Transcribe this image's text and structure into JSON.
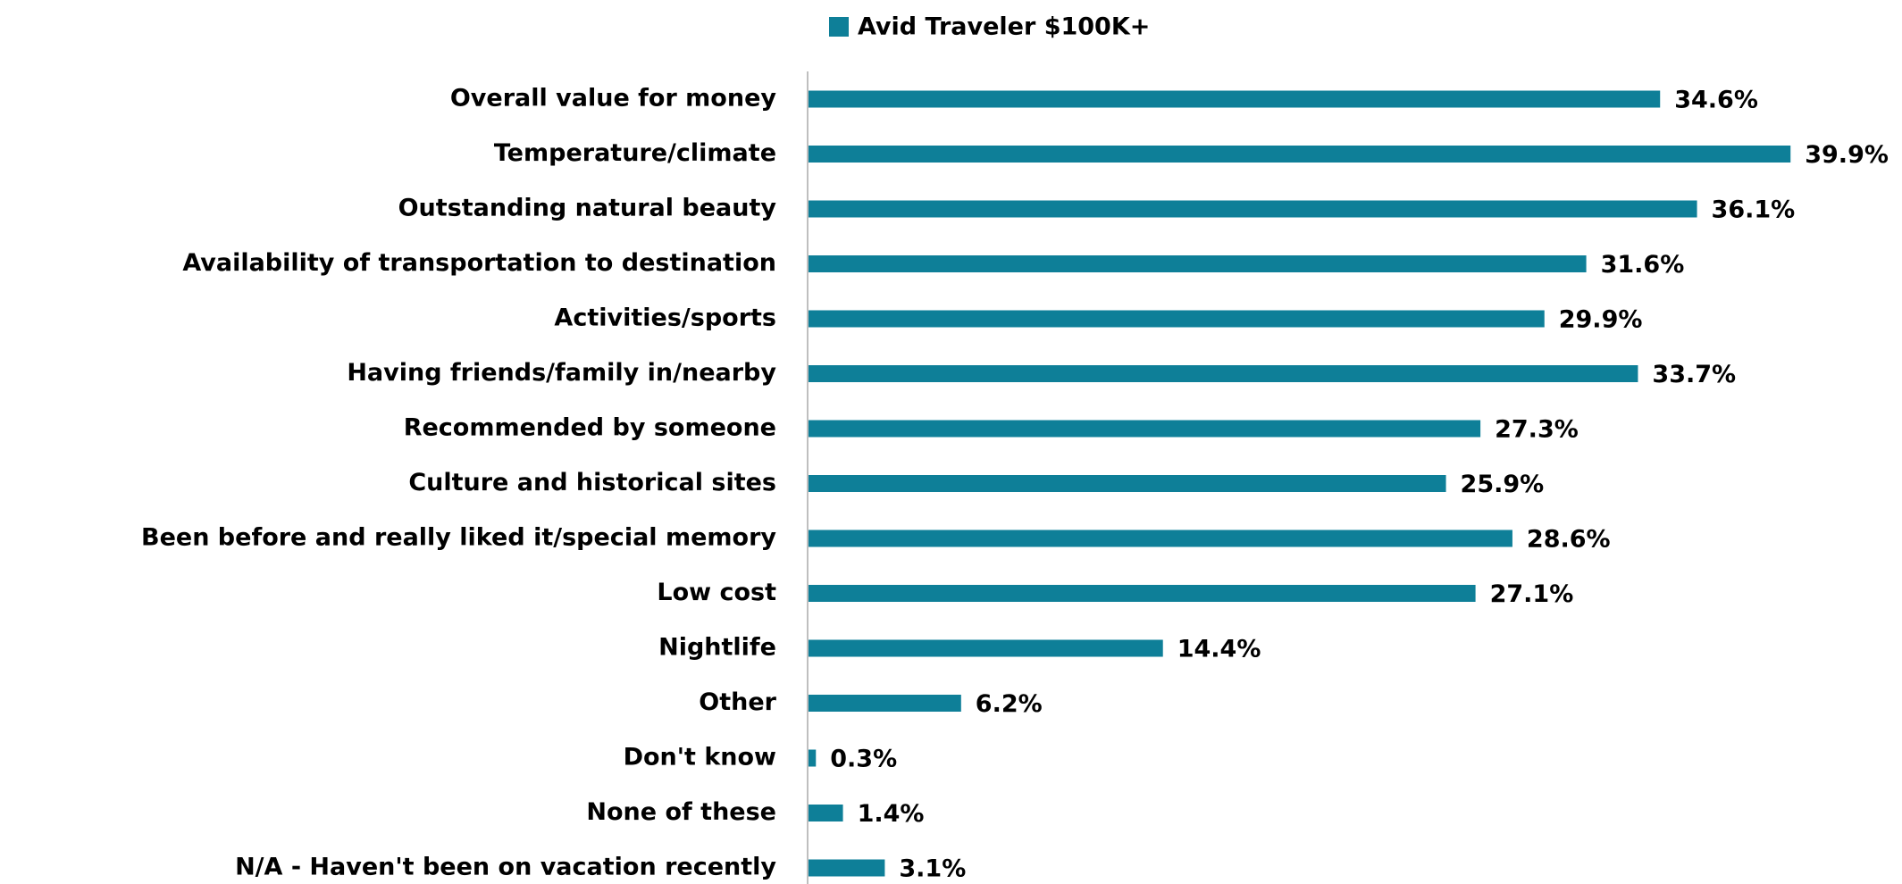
{
  "chart_data": {
    "type": "bar",
    "orientation": "horizontal",
    "categories": [
      "Overall value for money",
      "Temperature/climate",
      "Outstanding natural beauty",
      "Availability of transportation to destination",
      "Activities/sports",
      "Having friends/family in/nearby",
      "Recommended by someone",
      "Culture and historical sites",
      "Been before and really liked it/special memory",
      "Low cost",
      "Nightlife",
      "Other",
      "Don't know",
      "None of these",
      "N/A - Haven't been on vacation recently"
    ],
    "series": [
      {
        "name": "Avid Traveler $100K+",
        "color": "#0e7f98",
        "values": [
          34.6,
          39.9,
          36.1,
          31.6,
          29.9,
          33.7,
          27.3,
          25.9,
          28.6,
          27.1,
          14.4,
          6.2,
          0.3,
          1.4,
          3.1
        ],
        "value_labels": [
          "34.6%",
          "39.9%",
          "36.1%",
          "31.6%",
          "29.9%",
          "33.7%",
          "27.3%",
          "25.9%",
          "28.6%",
          "27.1%",
          "14.4%",
          "6.2%",
          "0.3%",
          "1.4%",
          "3.1%"
        ]
      }
    ],
    "legend": "top"
  }
}
